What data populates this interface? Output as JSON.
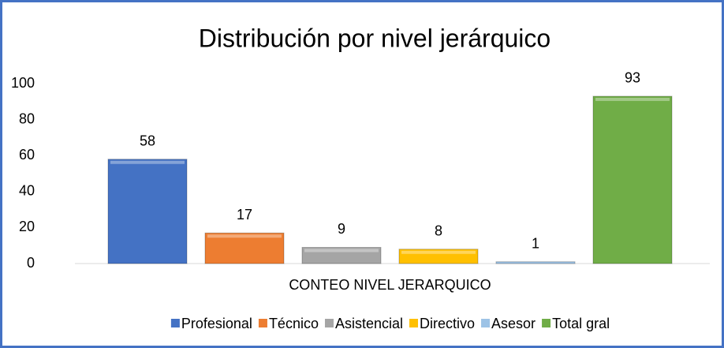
{
  "chart_data": {
    "type": "bar",
    "title": "Distribución por nivel jerárquico",
    "categories": [
      "CONTEO NIVEL JERARQUICO"
    ],
    "series": [
      {
        "name": "Profesional",
        "color": "#4472c4",
        "values": [
          58
        ]
      },
      {
        "name": "Técnico",
        "color": "#ed7d31",
        "values": [
          17
        ]
      },
      {
        "name": "Asistencial",
        "color": "#a5a5a5",
        "values": [
          9
        ]
      },
      {
        "name": "Directivo",
        "color": "#ffc000",
        "values": [
          8
        ]
      },
      {
        "name": "Asesor",
        "color": "#9dc3e6",
        "values": [
          1
        ]
      },
      {
        "name": "Total gral",
        "color": "#70ad47",
        "values": [
          93
        ]
      }
    ],
    "ylim": [
      0,
      100
    ],
    "yticks": [
      0,
      20,
      40,
      60,
      80,
      100
    ],
    "grid": false,
    "legend": "bottom"
  }
}
